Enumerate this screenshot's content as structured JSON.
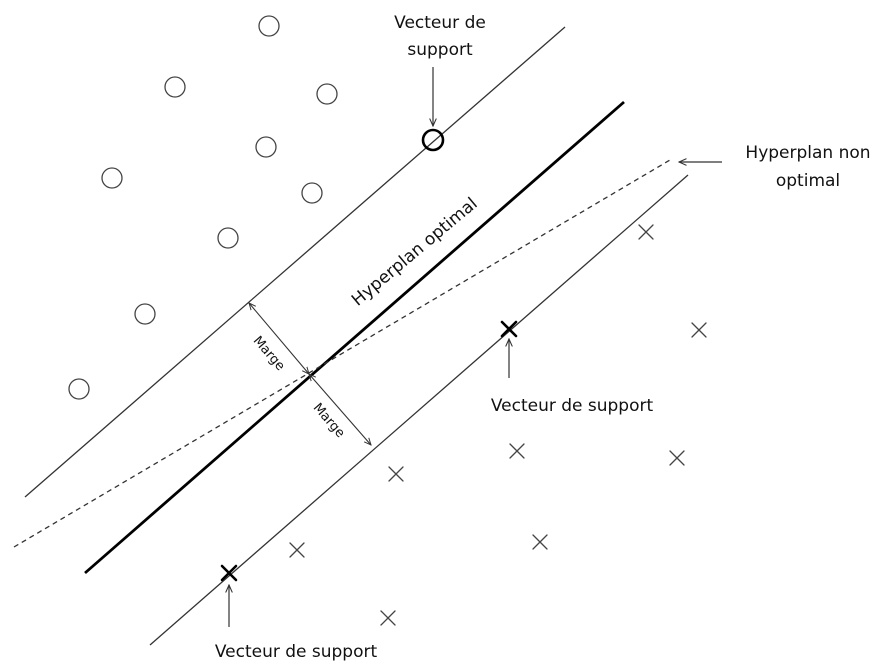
{
  "labels": {
    "support_top_line1": "Vecteur de",
    "support_top_line2": "support",
    "non_optimal_line1": "Hyperplan non",
    "non_optimal_line2": "optimal",
    "optimal": "Hyperplan optimal",
    "support_mid": "Vecteur de support",
    "support_bottom": "Vecteur de support",
    "margin_upper": "Marge",
    "margin_lower": "Marge"
  },
  "class_a": {
    "marker": "circle"
  },
  "class_b": {
    "marker": "cross"
  }
}
